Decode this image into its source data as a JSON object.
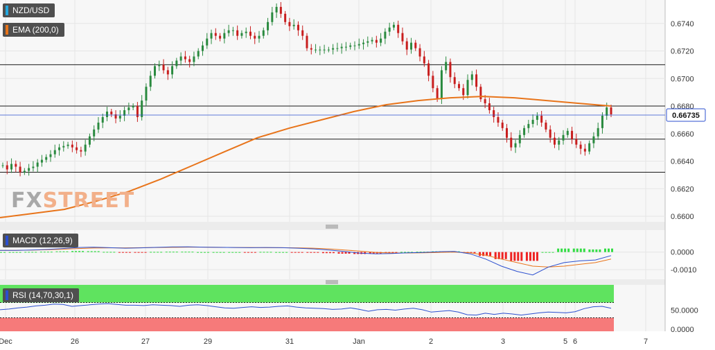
{
  "chart_data": [
    {
      "type": "candlestick",
      "title": "NZD/USD",
      "indicator": "EMA (200,0)",
      "current_price": "0.66735",
      "y_ticks": [
        "0.6740",
        "0.6720",
        "0.6700",
        "0.6680",
        "0.6660",
        "0.6640",
        "0.6620",
        "0.6600"
      ],
      "ylim": [
        0.6596,
        0.6757
      ],
      "x_ticks": [
        "Dec",
        "26",
        "27",
        "29",
        "31",
        "Jan",
        "2",
        "3",
        "5",
        "6",
        "7"
      ],
      "horizontal_levels": [
        0.671,
        0.668,
        0.6656,
        0.6632
      ],
      "colors": {
        "up": "#2a8a3f",
        "down": "#c81e1e",
        "ema": "#e8741a",
        "grid": "#e6e6e6",
        "bg": "#f7f7f7"
      },
      "price_series": [
        0.6637,
        0.6634,
        0.6638,
        0.6636,
        0.6632,
        0.6633,
        0.6635,
        0.6636,
        0.6639,
        0.6641,
        0.6643,
        0.6645,
        0.6648,
        0.665,
        0.6651,
        0.6652,
        0.665,
        0.6648,
        0.6647,
        0.6652,
        0.6658,
        0.6663,
        0.6668,
        0.6672,
        0.6676,
        0.6674,
        0.6671,
        0.6673,
        0.6677,
        0.6679,
        0.668,
        0.6672,
        0.6684,
        0.6694,
        0.6702,
        0.6709,
        0.671,
        0.6706,
        0.6703,
        0.6709,
        0.6713,
        0.6716,
        0.6714,
        0.6712,
        0.6716,
        0.672,
        0.6724,
        0.6729,
        0.6733,
        0.6731,
        0.6729,
        0.6733,
        0.6735,
        0.6735,
        0.6731,
        0.6733,
        0.6734,
        0.6731,
        0.6729,
        0.6731,
        0.6735,
        0.6741,
        0.6748,
        0.6752,
        0.6747,
        0.6741,
        0.6738,
        0.6739,
        0.6735,
        0.6731,
        0.6722,
        0.6721,
        0.6721,
        0.6721,
        0.6721,
        0.6721,
        0.6722,
        0.6722,
        0.6723,
        0.6723,
        0.6724,
        0.6724,
        0.6725,
        0.6726,
        0.6727,
        0.6728,
        0.6726,
        0.6729,
        0.6734,
        0.6737,
        0.6739,
        0.6733,
        0.6727,
        0.6721,
        0.6726,
        0.6722,
        0.6716,
        0.6711,
        0.6702,
        0.6693,
        0.6685,
        0.6706,
        0.6712,
        0.6701,
        0.6696,
        0.6693,
        0.6688,
        0.6699,
        0.6703,
        0.6694,
        0.6685,
        0.6682,
        0.6677,
        0.6672,
        0.6668,
        0.6664,
        0.6657,
        0.665,
        0.6653,
        0.6659,
        0.6664,
        0.6667,
        0.667,
        0.6673,
        0.6668,
        0.6663,
        0.6657,
        0.6652,
        0.6655,
        0.6659,
        0.6662,
        0.6656,
        0.6652,
        0.6649,
        0.6647,
        0.6653,
        0.6658,
        0.6664,
        0.6673,
        0.6679,
        0.6674
      ],
      "ema_series": [
        0.6599,
        0.6602,
        0.6605,
        0.6611,
        0.6618,
        0.6627,
        0.6637,
        0.6647,
        0.6657,
        0.6664,
        0.667,
        0.6676,
        0.6681,
        0.6684,
        0.6686,
        0.6687,
        0.6686,
        0.6684,
        0.6682,
        0.668
      ]
    },
    {
      "type": "line",
      "title": "MACD (12,26,9)",
      "y_ticks": [
        "0.0000",
        "-0.0010"
      ],
      "ylim": [
        -0.00155,
        0.00125
      ],
      "colors": {
        "macd": "#2b4fcf",
        "signal": "#e8741a",
        "hist_up": "#33dd44",
        "hist_down": "#ee2222"
      },
      "macd": [
        0.0001,
        0.0001,
        0.00012,
        0.00015,
        0.0002,
        0.00026,
        0.00028,
        0.00025,
        0.00022,
        0.00024,
        0.00027,
        0.00029,
        0.0003,
        0.00028,
        0.00027,
        0.00026,
        0.00025,
        0.00026,
        0.00025,
        0.00022,
        0.00018,
        0.00012,
        3e-05,
        -6e-05,
        -0.0001,
        -8e-05,
        -4e-05,
        -2e-05,
        2e-05,
        4e-05,
        -0.0001,
        -0.0004,
        -0.0008,
        -0.0011,
        -0.0013,
        -0.00085,
        -0.0006,
        -0.0005,
        -0.00045,
        -0.0002
      ],
      "signal": [
        0.0001,
        0.0001,
        0.00011,
        0.00013,
        0.00016,
        0.0002,
        0.00023,
        0.00024,
        0.00024,
        0.00025,
        0.00026,
        0.00027,
        0.00028,
        0.00028,
        0.00027,
        0.00026,
        0.00026,
        0.00025,
        0.00025,
        0.00024,
        0.00022,
        0.00018,
        0.00012,
        5e-05,
        -2e-05,
        -5e-05,
        -5e-05,
        -4e-05,
        -2e-05,
        0.0,
        -4e-05,
        -0.00018,
        -0.0004,
        -0.0006,
        -0.0008,
        -0.00085,
        -0.0008,
        -0.0007,
        -0.0006,
        -0.0004
      ]
    },
    {
      "type": "line",
      "title": "RSI (14,70,30,1)",
      "y_ticks": [
        "50.0000",
        "0.0000"
      ],
      "ylim": [
        0,
        100
      ],
      "overbought": 70,
      "oversold": 30,
      "colors": {
        "rsi": "#2b4fcf",
        "overbought": "#5fe35f",
        "oversold": "#f67a7a"
      },
      "rsi": [
        51,
        53,
        56,
        58,
        61,
        63,
        66,
        65,
        60,
        62,
        64,
        66,
        67,
        65,
        63,
        63,
        62,
        64,
        63,
        62,
        60,
        63,
        64,
        62,
        59,
        56,
        55,
        57,
        59,
        57,
        58,
        60,
        61,
        58,
        56,
        55,
        54,
        52,
        53,
        56,
        52,
        47,
        51,
        52,
        50,
        53,
        55,
        51,
        45,
        47,
        49,
        45,
        38,
        37,
        42,
        39,
        42,
        40,
        37,
        40,
        43,
        45,
        44,
        43,
        46,
        54,
        59,
        60,
        55
      ]
    }
  ]
}
